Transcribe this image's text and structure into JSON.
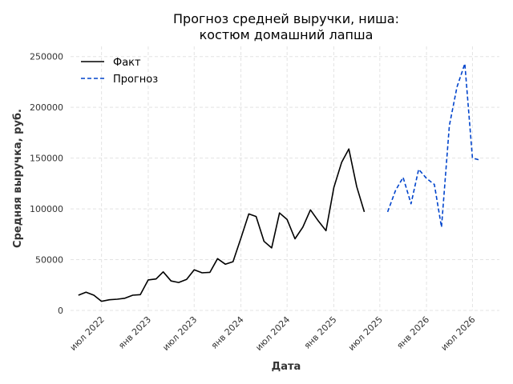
{
  "chart_data": {
    "type": "line",
    "title": [
      "Прогноз средней выручки, ниша:",
      "костюм домашний лапша"
    ],
    "xlabel": "Дата",
    "ylabel": "Средняя выручка, руб.",
    "ylim": [
      0,
      260000
    ],
    "xlim": [
      "2022-03-01",
      "2026-10-15"
    ],
    "yticks": [
      0,
      50000,
      100000,
      150000,
      200000,
      250000
    ],
    "ytick_labels": [
      "0",
      "50000",
      "100000",
      "150000",
      "200000",
      "250000"
    ],
    "xticks": [
      "2022-07-01",
      "2023-01-01",
      "2023-07-01",
      "2024-01-01",
      "2024-07-01",
      "2025-01-01",
      "2025-07-01",
      "2026-01-01",
      "2026-07-01"
    ],
    "xtick_labels": [
      "июл 2022",
      "янв 2023",
      "июл 2023",
      "янв 2024",
      "июл 2024",
      "янв 2025",
      "июл 2025",
      "янв 2026",
      "июл 2026"
    ],
    "grid": true,
    "legend": "top-left",
    "series": [
      {
        "name": "Факт",
        "color": "#000000",
        "style": "solid",
        "x": [
          "2022-04-01",
          "2022-05-01",
          "2022-06-01",
          "2022-07-01",
          "2022-08-01",
          "2022-09-01",
          "2022-10-01",
          "2022-11-01",
          "2022-12-01",
          "2023-01-01",
          "2023-02-01",
          "2023-03-01",
          "2023-04-01",
          "2023-05-01",
          "2023-06-01",
          "2023-07-01",
          "2023-08-01",
          "2023-09-01",
          "2023-10-01",
          "2023-11-01",
          "2023-12-01",
          "2024-01-01",
          "2024-02-01",
          "2024-03-01",
          "2024-04-01",
          "2024-05-01",
          "2024-06-01",
          "2024-07-01",
          "2024-08-01",
          "2024-09-01",
          "2024-10-01",
          "2024-11-01",
          "2024-12-01",
          "2025-01-01",
          "2025-02-01",
          "2025-03-01",
          "2025-04-01",
          "2025-05-01",
          "2025-06-01",
          "2025-07-01",
          "2025-08-01"
        ],
        "y": [
          15000,
          18000,
          15000,
          9000,
          10500,
          11000,
          12000,
          15000,
          15500,
          30000,
          31000,
          38000,
          29000,
          27500,
          30500,
          40000,
          37000,
          37500,
          51000,
          45500,
          48000,
          71000,
          95000,
          92500,
          68000,
          61500,
          96000,
          89500,
          70500,
          82000,
          99000,
          88000,
          78500,
          121000,
          146000,
          159000,
          122000,
          97000,
          null,
          null,
          null
        ]
      },
      {
        "name": "Прогноз",
        "color": "#0044cc",
        "style": "dashed",
        "x": [
          "2025-08-01",
          "2025-09-01",
          "2025-10-01",
          "2025-11-01",
          "2025-12-01",
          "2026-01-01",
          "2026-02-01",
          "2026-03-01",
          "2026-04-01",
          "2026-05-01",
          "2026-06-01",
          "2026-07-01",
          "2026-08-01"
        ],
        "y": [
          97000,
          118000,
          131000,
          105000,
          139000,
          130000,
          124000,
          82000,
          182000,
          220000,
          243000,
          150000,
          148000
        ]
      }
    ]
  }
}
